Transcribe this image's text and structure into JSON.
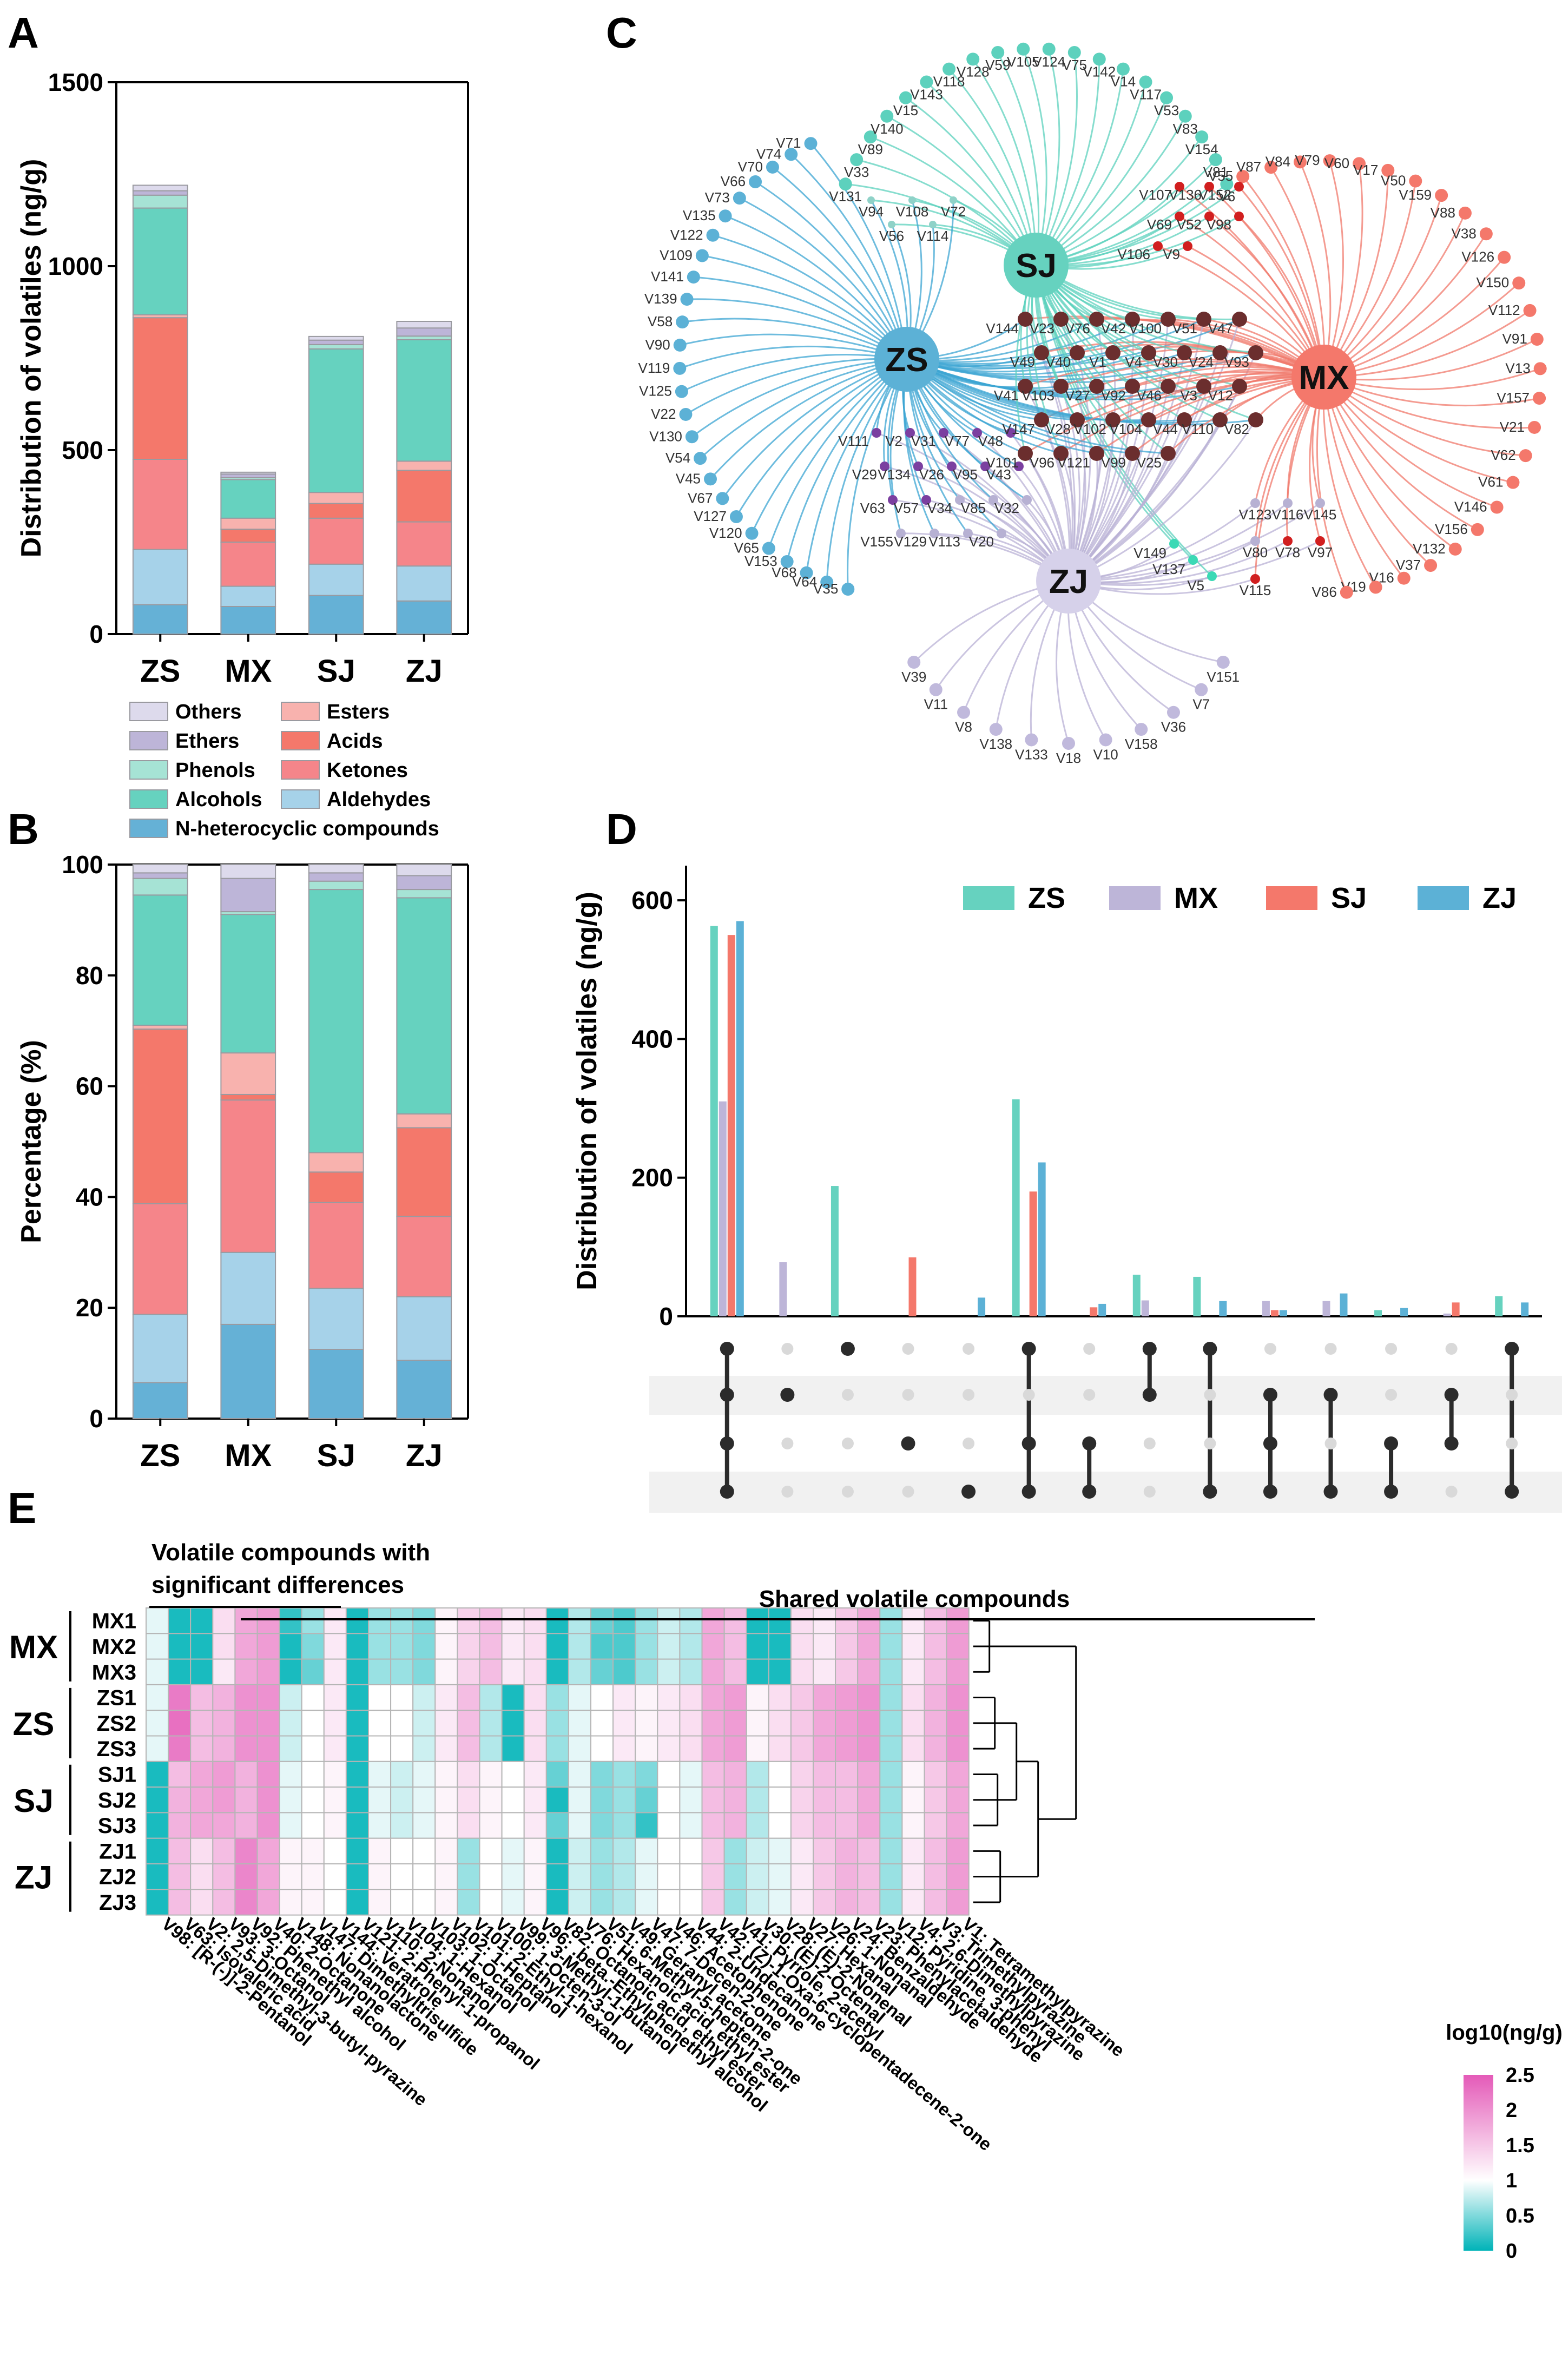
{
  "colors": {
    "Others": "#dddaec",
    "Ethers": "#bdb5d8",
    "Phenols": "#a6e3d5",
    "Alcohols": "#66d2bf",
    "Esters": "#f8b2ae",
    "Acids": "#f4786b",
    "Ketones": "#f5858a",
    "Aldehydes": "#a6d2e9",
    "N-heterocyclic compounds": "#65b1d6",
    "ZS": "#66d2bf",
    "MX": "#bdb5d8",
    "SJ": "#f4786b",
    "ZJ": "#5cb1d6",
    "intersect": "#6b2e2e",
    "zs_sj": "#7b3fa0",
    "mx_sj": "#d11f1f",
    "sj_zj": "#3bd9b5",
    "heat_low": "#00b3b8",
    "heat_mid": "#ffffff",
    "heat_high": "#e45ab8"
  },
  "panel_labels": {
    "a": "A",
    "b": "B",
    "c": "C",
    "d": "D",
    "e": "E"
  },
  "chart_data": [
    {
      "id": "A",
      "type": "bar",
      "stacked": true,
      "categories": [
        "ZS",
        "MX",
        "SJ",
        "ZJ"
      ],
      "ylabel": "Distribution of volatiles (ng/g)",
      "ylim": [
        0,
        1500
      ],
      "yticks": [
        0,
        500,
        1000,
        1500
      ],
      "series": [
        {
          "name": "N-heterocyclic compounds",
          "values": [
            80,
            75,
            105,
            90
          ]
        },
        {
          "name": "Aldehydes",
          "values": [
            150,
            55,
            85,
            95
          ]
        },
        {
          "name": "Ketones",
          "values": [
            245,
            120,
            125,
            120
          ]
        },
        {
          "name": "Acids",
          "values": [
            385,
            35,
            40,
            140
          ]
        },
        {
          "name": "Esters",
          "values": [
            8,
            30,
            30,
            25
          ]
        },
        {
          "name": "Alcohols",
          "values": [
            290,
            105,
            390,
            330
          ]
        },
        {
          "name": "Phenols",
          "values": [
            35,
            5,
            12,
            10
          ]
        },
        {
          "name": "Ethers",
          "values": [
            12,
            10,
            12,
            22
          ]
        },
        {
          "name": "Others",
          "values": [
            15,
            5,
            10,
            18
          ]
        }
      ]
    },
    {
      "id": "B",
      "type": "bar",
      "stacked": true,
      "categories": [
        "ZS",
        "MX",
        "SJ",
        "ZJ"
      ],
      "ylabel": "Percentage (%)",
      "ylim": [
        0,
        100
      ],
      "yticks": [
        0,
        20,
        40,
        60,
        80,
        100
      ],
      "series": [
        {
          "name": "N-heterocyclic compounds",
          "values": [
            6.5,
            17,
            12.5,
            10.5
          ]
        },
        {
          "name": "Aldehydes",
          "values": [
            12.3,
            13,
            11,
            11.5
          ]
        },
        {
          "name": "Ketones",
          "values": [
            20,
            27.5,
            15.5,
            14.5
          ]
        },
        {
          "name": "Acids",
          "values": [
            31.5,
            1,
            5.5,
            16
          ]
        },
        {
          "name": "Esters",
          "values": [
            0.7,
            7.5,
            3.5,
            2.5
          ]
        },
        {
          "name": "Alcohols",
          "values": [
            23.5,
            25,
            47.5,
            39
          ]
        },
        {
          "name": "Phenols",
          "values": [
            3,
            0.5,
            1.5,
            1.5
          ]
        },
        {
          "name": "Ethers",
          "values": [
            1,
            6,
            1.5,
            2.5
          ]
        },
        {
          "name": "Others",
          "values": [
            1.5,
            2.5,
            1.5,
            2
          ]
        }
      ]
    },
    {
      "id": "D",
      "type": "bar",
      "ylabel": "Distribution of volatiles (ng/g)",
      "ylim": [
        0,
        650
      ],
      "yticks": [
        0,
        200,
        400,
        600
      ],
      "legend": [
        "ZS",
        "MX",
        "SJ",
        "ZJ"
      ],
      "groups": [
        {
          "values": [
            563,
            310,
            550,
            570
          ],
          "sets": [
            "ZS",
            "MX",
            "SJ",
            "ZJ"
          ]
        },
        {
          "values": [
            0,
            78,
            0,
            0
          ],
          "sets": [
            "MX"
          ]
        },
        {
          "values": [
            188,
            0,
            0,
            0
          ],
          "sets": [
            "ZS"
          ]
        },
        {
          "values": [
            0,
            0,
            85,
            0
          ],
          "sets": [
            "SJ"
          ]
        },
        {
          "values": [
            0,
            0,
            0,
            27
          ],
          "sets": [
            "ZJ"
          ]
        },
        {
          "values": [
            313,
            0,
            180,
            222
          ],
          "sets": [
            "ZS",
            "SJ",
            "ZJ"
          ]
        },
        {
          "values": [
            0,
            0,
            13,
            18
          ],
          "sets": [
            "SJ",
            "ZJ"
          ]
        },
        {
          "values": [
            60,
            23,
            0,
            0
          ],
          "sets": [
            "ZS",
            "MX"
          ]
        },
        {
          "values": [
            57,
            0,
            0,
            22
          ],
          "sets": [
            "ZS",
            "ZJ"
          ]
        },
        {
          "values": [
            0,
            22,
            9,
            9
          ],
          "sets": [
            "MX",
            "SJ",
            "ZJ"
          ]
        },
        {
          "values": [
            0,
            22,
            0,
            33
          ],
          "sets": [
            "MX",
            "ZJ"
          ]
        },
        {
          "values": [
            9,
            0,
            0,
            12
          ],
          "sets": [
            "SJ",
            "ZJ"
          ]
        },
        {
          "values": [
            0,
            4,
            20,
            0
          ],
          "sets": [
            "MX",
            "SJ"
          ]
        },
        {
          "values": [
            29,
            0,
            0,
            20
          ],
          "sets": [
            "ZS",
            "ZJ"
          ]
        }
      ]
    },
    {
      "id": "E",
      "type": "heatmap",
      "title": "log10(ng/g)",
      "range": [
        0,
        2.5
      ],
      "ticks": [
        "0",
        "0.5",
        "1",
        "1.5",
        "2",
        "2.5"
      ],
      "rows": [
        "MX1",
        "MX2",
        "MX3",
        "ZS1",
        "ZS2",
        "ZS3",
        "SJ1",
        "SJ2",
        "SJ3",
        "ZJ1",
        "ZJ2",
        "ZJ3"
      ],
      "row_groups": [
        "MX",
        "ZS",
        "SJ",
        "ZJ"
      ],
      "columns": [
        "V98: [R-(-)]-2-Pentanol",
        "V63: Isovaleric acid",
        "V2: 2,5-Dimethyl-3-butyl-pyrazine",
        "V93: 3-Octanol",
        "V92: Phenethyl alcohol",
        "V40: 2-Octanone",
        "V148: Nonanolactone",
        "V147: Dimethyltrisulfide",
        "V144: Veratrole",
        "V121: 2-Phenyl-1-propanol",
        "V110: 2-Nonanol",
        "V104: 1-Hexanol",
        "V103: 1-Octanol",
        "V102: 1-Heptanol",
        "V101: 2-Ethyl-1-hexanol",
        "V100: 1-Octen-3-ol",
        "V99: 3-Methyl-1-butanol",
        "V96: .beta.-Ethylphenethyl alcohol",
        "V82: Octanoic acid, ethyl ester",
        "V76: Hexanoic acid, ethyl ester",
        "V51: 6-Methyl-5-hepten-2-one",
        "V49: Geranyl acetone",
        "V47: 7-Decen-2-one",
        "V46: Acetophenone",
        "V44: 2-Undecanone",
        "V42: (Z)-1-Oxa-6-cyclopentadecene-2-one",
        "V41: Pyrrole, 2-acetyl",
        "V30: (E)-2-Octenal",
        "V28: (E)-2-Nonenal",
        "V27: Hexanal",
        "V26: 1-Nonanal",
        "V24: Benzaldehyde",
        "V23: Phenylacetaldehyde",
        "V12: Pyridine, 3-phenyl",
        "V4: 2,6-Dimethylpyrazine",
        "V3: Trimethylpyrazine",
        "V1: Tetramethylpyrazine"
      ],
      "values": [
        [
          0.9,
          0.1,
          0.1,
          1.3,
          1.8,
          1.9,
          0.2,
          0.6,
          1.2,
          0.1,
          0.6,
          0.6,
          0.5,
          1.1,
          1.4,
          1.6,
          1.2,
          1.3,
          0.1,
          0.7,
          0.4,
          0.3,
          0.6,
          0.8,
          0.7,
          1.8,
          1.6,
          0.1,
          0.1,
          1.3,
          1.2,
          1.5,
          1.8,
          0.6,
          1.2,
          1.6,
          1.9
        ],
        [
          0.9,
          0.1,
          0.1,
          1.3,
          1.8,
          1.9,
          0.1,
          0.5,
          1.2,
          0.1,
          0.6,
          0.6,
          0.5,
          1.1,
          1.4,
          1.6,
          1.2,
          1.3,
          0.1,
          0.7,
          0.3,
          0.3,
          0.6,
          0.8,
          0.7,
          1.8,
          1.6,
          0.1,
          0.1,
          1.3,
          1.2,
          1.5,
          1.8,
          0.6,
          1.2,
          1.6,
          1.9
        ],
        [
          0.9,
          0.1,
          0.1,
          1.2,
          1.8,
          1.9,
          0.1,
          0.4,
          1.2,
          0.1,
          0.6,
          0.6,
          0.5,
          1.1,
          1.4,
          1.6,
          1.2,
          1.3,
          0.1,
          0.7,
          0.4,
          0.3,
          0.6,
          0.8,
          0.7,
          1.8,
          1.6,
          0.1,
          0.1,
          1.3,
          1.2,
          1.5,
          1.8,
          0.6,
          1.2,
          1.6,
          1.9
        ],
        [
          0.9,
          2.2,
          1.6,
          1.7,
          2.0,
          2.0,
          0.8,
          1.0,
          1.2,
          0.1,
          1.0,
          1.0,
          0.8,
          1.2,
          1.6,
          0.7,
          0.1,
          1.3,
          0.6,
          0.9,
          1.0,
          1.2,
          1.1,
          1.2,
          1.3,
          1.8,
          1.9,
          1.1,
          1.3,
          1.5,
          1.8,
          1.9,
          2.0,
          0.6,
          1.3,
          1.7,
          2.0
        ],
        [
          0.9,
          2.3,
          1.6,
          1.7,
          2.0,
          2.0,
          0.8,
          1.0,
          1.2,
          0.1,
          1.0,
          1.0,
          0.8,
          1.2,
          1.6,
          0.7,
          0.1,
          1.3,
          0.6,
          0.9,
          1.0,
          1.2,
          1.1,
          1.2,
          1.3,
          1.8,
          1.9,
          1.1,
          1.3,
          1.5,
          1.8,
          1.9,
          2.0,
          0.6,
          1.3,
          1.7,
          2.0
        ],
        [
          0.9,
          2.2,
          1.6,
          1.7,
          2.0,
          2.0,
          0.8,
          1.0,
          1.2,
          0.1,
          1.0,
          1.0,
          0.8,
          1.2,
          1.6,
          0.7,
          0.1,
          1.3,
          0.6,
          0.9,
          1.0,
          1.2,
          1.1,
          1.2,
          1.3,
          1.8,
          1.9,
          1.1,
          1.3,
          1.5,
          1.8,
          1.9,
          2.0,
          0.6,
          1.3,
          1.7,
          2.0
        ],
        [
          0.1,
          1.6,
          1.8,
          1.9,
          1.7,
          2.0,
          0.9,
          1.0,
          1.1,
          0.1,
          0.9,
          0.8,
          0.9,
          1.1,
          1.3,
          1.1,
          1.0,
          1.2,
          0.4,
          0.9,
          0.5,
          0.6,
          0.5,
          1.0,
          0.9,
          1.6,
          1.7,
          0.7,
          1.0,
          1.4,
          1.6,
          1.6,
          1.8,
          0.6,
          1.1,
          1.5,
          1.8
        ],
        [
          0.1,
          1.7,
          1.8,
          1.9,
          1.7,
          2.0,
          0.9,
          1.0,
          1.1,
          0.1,
          0.9,
          0.8,
          0.9,
          1.1,
          1.3,
          1.1,
          1.0,
          1.2,
          0.1,
          0.9,
          0.5,
          0.6,
          0.4,
          1.0,
          0.9,
          1.6,
          1.7,
          0.7,
          1.0,
          1.4,
          1.6,
          1.6,
          1.8,
          0.6,
          1.1,
          1.5,
          1.8
        ],
        [
          0.1,
          1.7,
          1.8,
          1.8,
          1.7,
          2.0,
          0.9,
          1.0,
          1.1,
          0.1,
          0.9,
          0.8,
          0.9,
          1.1,
          1.3,
          1.1,
          1.0,
          1.2,
          0.4,
          0.9,
          0.5,
          0.6,
          0.2,
          1.0,
          0.9,
          1.6,
          1.7,
          0.7,
          1.0,
          1.4,
          1.6,
          1.6,
          1.8,
          0.6,
          1.1,
          1.5,
          1.8
        ],
        [
          0.1,
          1.6,
          1.3,
          1.6,
          2.1,
          1.8,
          1.1,
          1.1,
          1.0,
          0.1,
          1.1,
          1.0,
          1.0,
          1.1,
          0.6,
          1.0,
          0.9,
          1.1,
          0.1,
          0.8,
          0.6,
          0.7,
          0.9,
          1.0,
          1.0,
          1.5,
          0.6,
          0.8,
          0.9,
          1.2,
          1.5,
          1.7,
          1.6,
          0.6,
          1.2,
          1.6,
          1.9
        ],
        [
          0.1,
          1.6,
          1.3,
          1.6,
          2.1,
          1.8,
          1.1,
          1.1,
          1.0,
          0.1,
          1.1,
          1.0,
          1.0,
          1.1,
          0.6,
          1.0,
          0.9,
          1.1,
          0.1,
          0.8,
          0.6,
          0.7,
          0.9,
          1.0,
          1.0,
          1.5,
          0.6,
          0.8,
          0.9,
          1.2,
          1.5,
          1.7,
          1.6,
          0.6,
          1.2,
          1.6,
          1.9
        ],
        [
          0.1,
          1.6,
          1.3,
          1.6,
          2.1,
          1.8,
          1.1,
          1.1,
          1.0,
          0.1,
          1.1,
          1.0,
          1.0,
          1.1,
          0.6,
          1.0,
          0.9,
          1.1,
          0.1,
          0.8,
          0.6,
          0.7,
          0.9,
          1.0,
          1.0,
          1.5,
          0.6,
          0.8,
          0.9,
          1.2,
          1.5,
          1.7,
          1.6,
          0.6,
          1.2,
          1.6,
          1.9
        ]
      ],
      "annotations": {
        "sig": "Volatile compounds with",
        "sig2": "significant differences",
        "shared": "Shared volatile compounds"
      }
    },
    {
      "id": "C",
      "type": "network",
      "hubs": [
        "ZS",
        "SJ",
        "MX",
        "ZJ"
      ],
      "zs_nodes": [
        "V71",
        "V74",
        "V70",
        "V66",
        "V73",
        "V135",
        "V122",
        "V109",
        "V141",
        "V139",
        "V58",
        "V90",
        "V119",
        "V125",
        "V22",
        "V130",
        "V54",
        "V45",
        "V67",
        "V127",
        "V120",
        "V65",
        "V153",
        "V68",
        "V64",
        "V35"
      ],
      "sj_nodes": [
        "V131",
        "V33",
        "V89",
        "V140",
        "V15",
        "V143",
        "V118",
        "V128",
        "V59",
        "V105",
        "V124",
        "V75",
        "V142",
        "V14",
        "V117",
        "V53",
        "V83",
        "V154",
        "V81",
        "V6"
      ],
      "mx_nodes": [
        "V55",
        "V87",
        "V84",
        "V79",
        "V60",
        "V17",
        "V50",
        "V159",
        "V88",
        "V38",
        "V126",
        "V150",
        "V112",
        "V91",
        "V13",
        "V157",
        "V21",
        "V62",
        "V61",
        "V146",
        "V156",
        "V132",
        "V37",
        "V16",
        "V19",
        "V86"
      ],
      "zj_nodes": [
        "V39",
        "V11",
        "V8",
        "V138",
        "V133",
        "V18",
        "V10",
        "V158",
        "V36",
        "V7",
        "V151"
      ],
      "zs_sj_nodes": [
        "V94",
        "V56",
        "V108",
        "V114",
        "V72"
      ],
      "mx_sj_nodes": [
        "V107",
        "V136",
        "V152",
        "V69",
        "V52",
        "V98",
        "V106",
        "V9"
      ],
      "zs_zj_nodes": [
        "V111",
        "V2",
        "V31",
        "V77",
        "V48",
        "V29",
        "V134",
        "V26",
        "V95",
        "V43",
        "V63",
        "V57",
        "V34",
        "V85",
        "V32",
        "V155",
        "V129",
        "V113",
        "V20"
      ],
      "mx_zj_nodes": [
        "V123",
        "V116",
        "V145",
        "V80",
        "V78",
        "V97",
        "V115"
      ],
      "sj_zj_nodes": [
        "V149",
        "V137",
        "V5"
      ],
      "core_nodes": [
        "V144",
        "V23",
        "V76",
        "V42",
        "V100",
        "V51",
        "V47",
        "V49",
        "V40",
        "V1",
        "V4",
        "V30",
        "V24",
        "V93",
        "V41",
        "V103",
        "V27",
        "V92",
        "V46",
        "V3",
        "V12",
        "V147",
        "V28",
        "V102",
        "V104",
        "V44",
        "V110",
        "V82",
        "V101",
        "V96",
        "V121",
        "V99",
        "V25"
      ]
    }
  ]
}
